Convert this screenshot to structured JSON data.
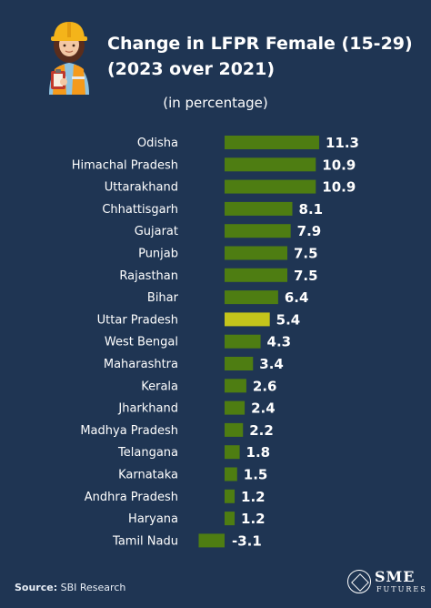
{
  "header": {
    "title_line1": "Change in LFPR Female (15-29)",
    "title_line2": "(2023 over 2021)",
    "unit": "(in percentage)"
  },
  "footer": {
    "source_label": "Source:",
    "source_text": "SBI Research",
    "logo_line1": "SME",
    "logo_line2": "FUTURES"
  },
  "colors": {
    "background": "#1f3553",
    "bar_default": "#4e7d12",
    "bar_highlight": "#c4c41b",
    "text": "#ffffff"
  },
  "chart_data": {
    "type": "bar",
    "orientation": "horizontal",
    "title": "Change in LFPR Female (15-29) (2023 over 2021)",
    "subtitle": "(in percentage)",
    "categories": [
      "Odisha",
      "Himachal Pradesh",
      "Uttarakhand",
      "Chhattisgarh",
      "Gujarat",
      "Punjab",
      "Rajasthan",
      "Bihar",
      "Uttar Pradesh",
      "West Bengal",
      "Maharashtra",
      "Kerala",
      "Jharkhand",
      "Madhya Pradesh",
      "Telangana",
      "Karnataka",
      "Andhra Pradesh",
      "Haryana",
      "Tamil Nadu"
    ],
    "values": [
      11.3,
      10.9,
      10.9,
      8.1,
      7.9,
      7.5,
      7.5,
      6.4,
      5.4,
      4.3,
      3.4,
      2.6,
      2.4,
      2.2,
      1.8,
      1.5,
      1.2,
      1.2,
      -3.1
    ],
    "value_labels": [
      "11.3",
      "10.9",
      "10.9",
      "8.1",
      "7.9",
      "7.5",
      "7.5",
      "6.4",
      "5.4",
      "4.3",
      "3.4",
      "2.6",
      "2.4",
      "2.2",
      "1.8",
      "1.5",
      "1.2",
      "1.2",
      "-3.1"
    ],
    "highlighted_category": "Uttar Pradesh",
    "xlim": [
      -3.1,
      11.3
    ],
    "grid": false,
    "legend": "none"
  }
}
